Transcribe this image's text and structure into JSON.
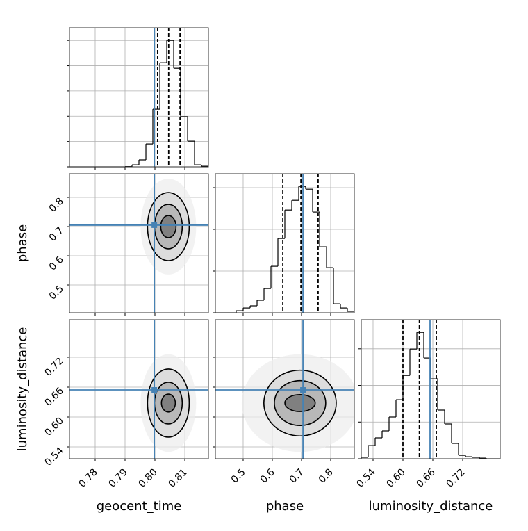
{
  "chart_data": {
    "type": "corner",
    "grid": true,
    "truth_color": "#4682b4",
    "level_colors": [
      "#ececec",
      "#dadada",
      "#b4b4b4",
      "#7a7a7a"
    ],
    "parameters": [
      {
        "name": "geocent_time",
        "lim": [
          0.7714,
          0.8179
        ],
        "ticks": [
          0.78,
          0.79,
          {
            "value": 0.8,
            "label": "0.80"
          },
          0.81
        ],
        "truth": 0.7998,
        "quantiles": [
          0.8009,
          0.8046,
          0.8084
        ],
        "bins": [
          0.7714,
          0.77373,
          0.77605,
          0.77838,
          0.7807,
          0.78303,
          0.78535,
          0.78768,
          0.79,
          0.79233,
          0.79465,
          0.79698,
          0.7993,
          0.80163,
          0.80395,
          0.80628,
          0.8086,
          0.81093,
          0.81325,
          0.81558,
          0.8179
        ],
        "counts": [
          0,
          0,
          0,
          0,
          0,
          0,
          0,
          0,
          2,
          16,
          55,
          181,
          456,
          824,
          1000,
          780,
          396,
          203,
          16,
          5
        ],
        "hist_ylim": [
          0,
          1100
        ],
        "hist_yticks": [
          0,
          200,
          400,
          600,
          800,
          1000
        ]
      },
      {
        "name": "phase",
        "lim": [
          0.4048,
          0.881
        ],
        "ticks": [
          0.5,
          0.6,
          0.7,
          0.8
        ],
        "truth": 0.705,
        "quantiles": [
          0.636,
          0.698,
          0.757
        ],
        "bins": [
          0.4048,
          0.4286,
          0.4524,
          0.4762,
          0.5,
          0.5239,
          0.5477,
          0.5715,
          0.5953,
          0.6191,
          0.6429,
          0.6667,
          0.6905,
          0.7143,
          0.7382,
          0.762,
          0.7858,
          0.8096,
          0.8334,
          0.8572,
          0.881
        ],
        "counts": [
          0,
          0,
          0,
          16,
          38,
          55,
          99,
          192,
          368,
          588,
          813,
          890,
          1000,
          978,
          797,
          522,
          357,
          71,
          38,
          11
        ],
        "hist_ylim": [
          0,
          1100
        ],
        "hist_yticks": [
          0,
          330,
          660,
          990
        ]
      },
      {
        "name": "luminosity_distance",
        "lim": [
          0.5163,
          0.7953
        ],
        "ticks": [
          0.54,
          {
            "value": 0.6,
            "label": "0.60"
          },
          0.66,
          0.72
        ],
        "truth": 0.6544,
        "quantiles": [
          0.6,
          0.633,
          0.667
        ],
        "bins": [
          0.5163,
          0.53025,
          0.5442,
          0.55815,
          0.5721,
          0.58605,
          0.6,
          0.61395,
          0.6279,
          0.64185,
          0.6558,
          0.66975,
          0.6837,
          0.69765,
          0.7116,
          0.72555,
          0.7395,
          0.75345,
          0.7674,
          0.78135,
          0.7953
        ],
        "counts": [
          11,
          104,
          165,
          220,
          330,
          467,
          659,
          868,
          1000,
          797,
          632,
          385,
          275,
          121,
          27,
          16,
          11,
          5,
          0,
          0
        ],
        "hist_ylim": [
          0,
          1100
        ],
        "hist_yticks": [
          0,
          290,
          580,
          870
        ]
      }
    ],
    "pairs": [
      {
        "x": 0,
        "y": 1,
        "center": [
          0.8045,
          0.7
        ],
        "radii": [
          [
            0.0093,
            0.164
          ],
          [
            0.00698,
            0.1166
          ],
          [
            0.00465,
            0.076
          ],
          [
            0.00256,
            0.038
          ]
        ]
      },
      {
        "x": 0,
        "y": 2,
        "center": [
          0.8045,
          0.628
        ],
        "radii": [
          [
            0.0093,
            0.098
          ],
          [
            0.00698,
            0.0684
          ],
          [
            0.00465,
            0.0419
          ],
          [
            0.00233,
            0.018
          ]
        ]
      },
      {
        "x": 1,
        "y": 2,
        "center": [
          0.695,
          0.628
        ],
        "radii": [
          [
            0.2,
            0.098
          ],
          [
            0.124,
            0.066
          ],
          [
            0.088,
            0.045
          ],
          [
            0.052,
            0.017
          ]
        ]
      }
    ]
  }
}
